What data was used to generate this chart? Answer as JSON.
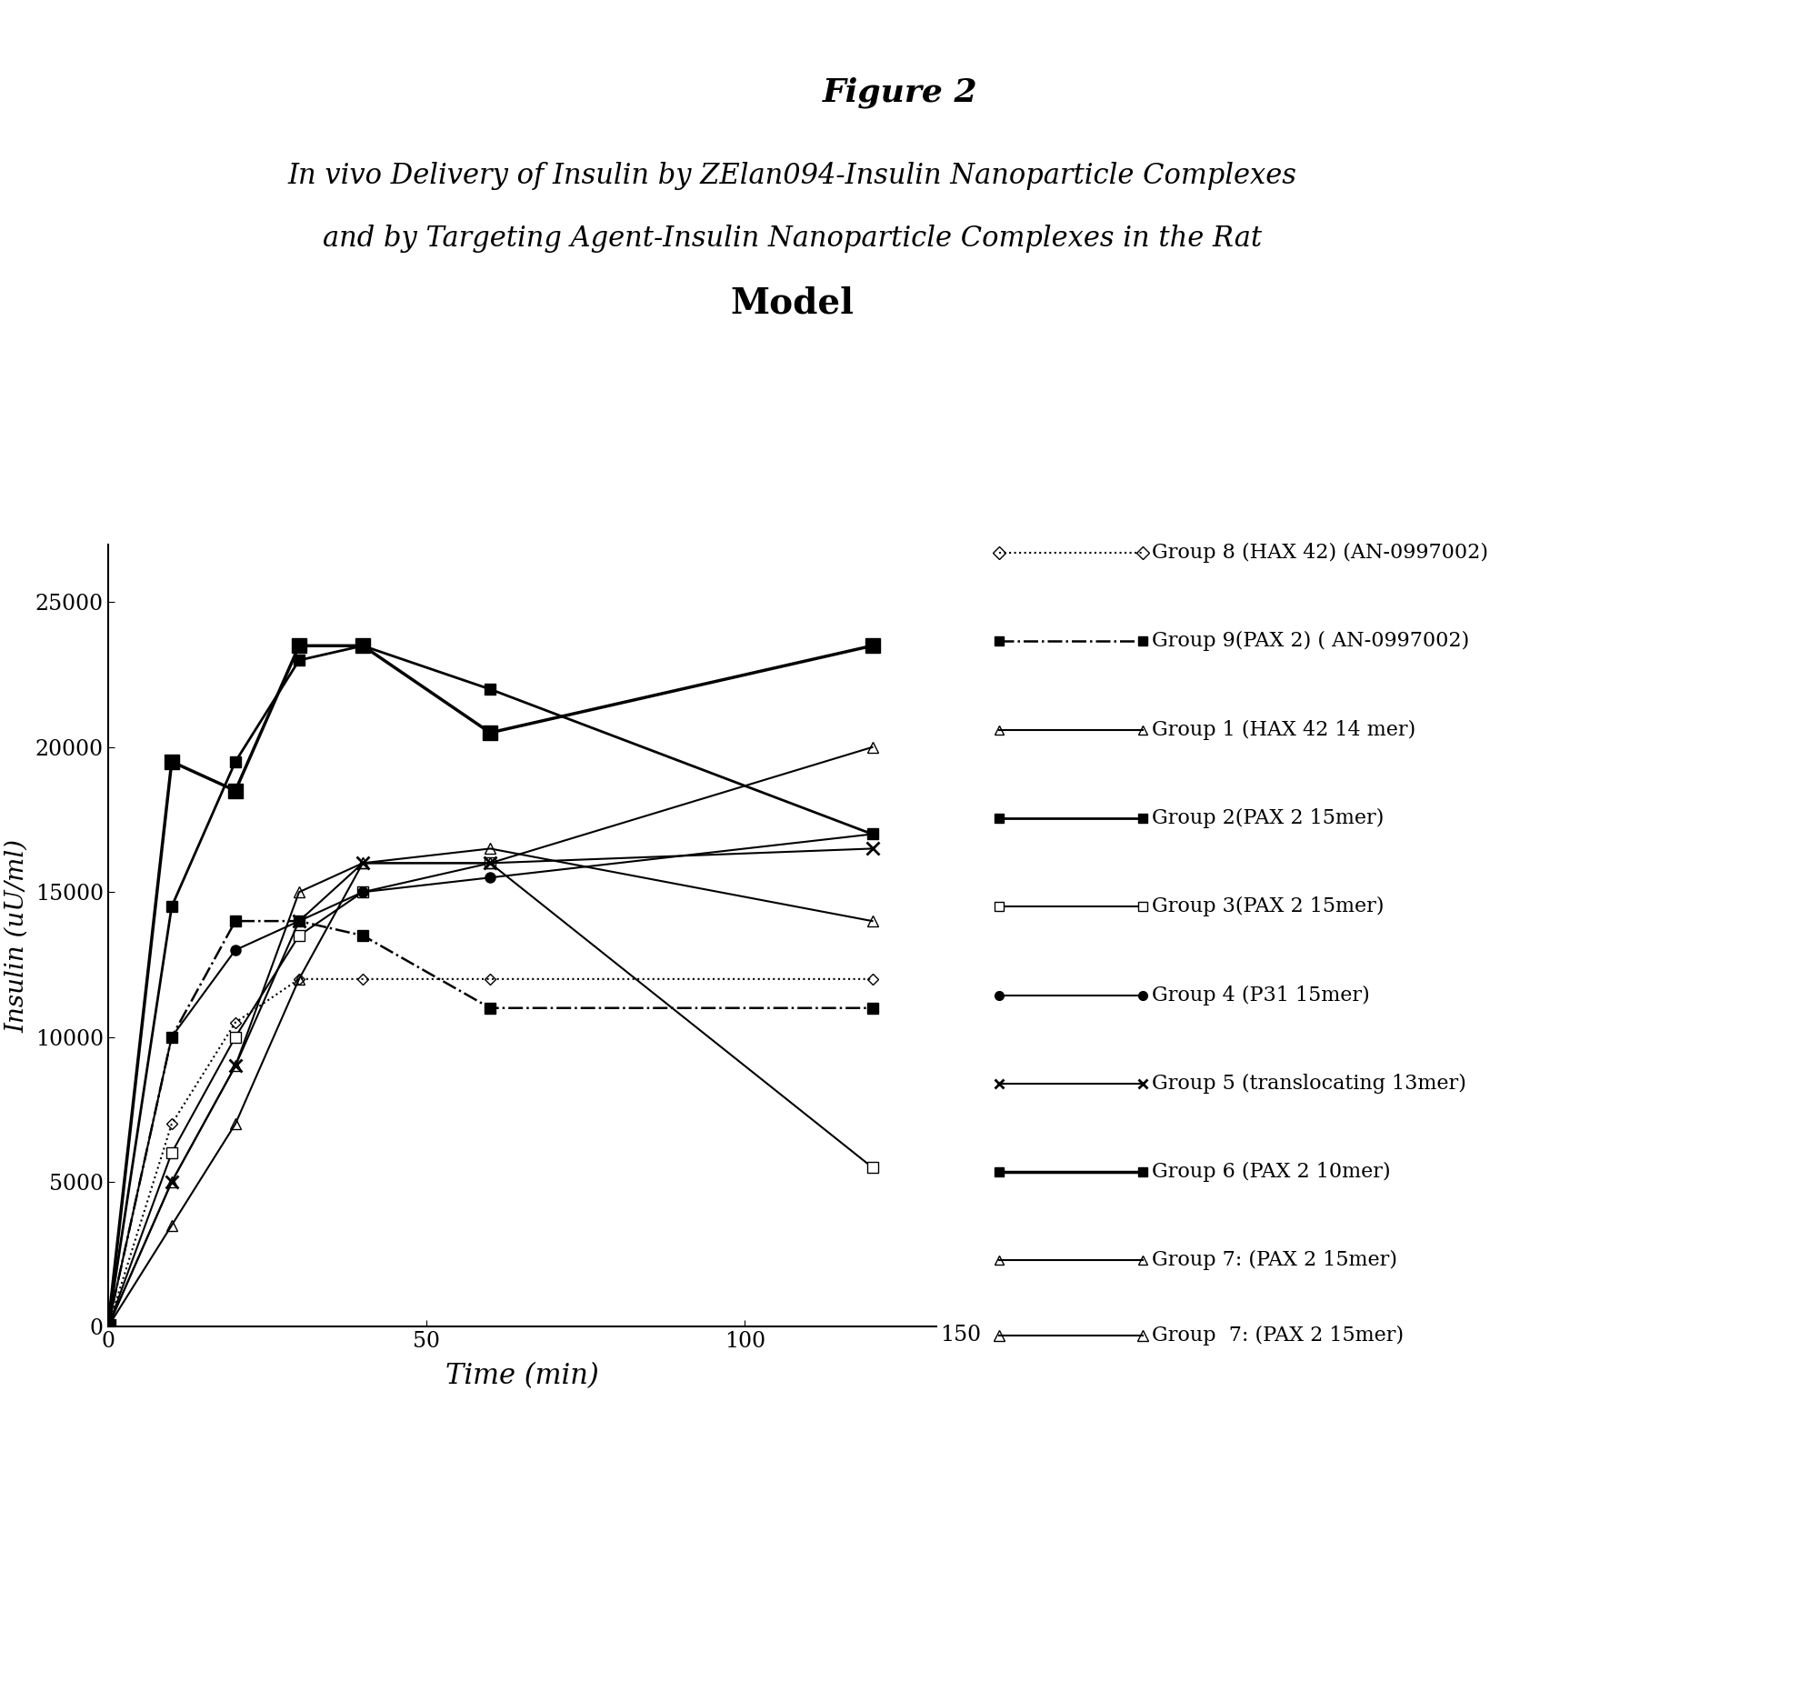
{
  "figure_title": "Figure 2",
  "subtitle_line1": "In vivo Delivery of Insulin by ZElan094-Insulin Nanoparticle Complexes",
  "subtitle_line2": "and by Targeting Agent-Insulin Nanoparticle Complexes in the Rat",
  "subtitle_line3": "Model",
  "xlabel": "Time (min)",
  "ylabel": "Insulin (uU/ml)",
  "xlim": [
    0,
    130
  ],
  "ylim": [
    0,
    27000
  ],
  "xticks": [
    0,
    50,
    100
  ],
  "yticks": [
    0,
    5000,
    10000,
    15000,
    20000,
    25000
  ],
  "background_color": "#ffffff",
  "series": [
    {
      "label": "Group 8 (HAX 42) (AN-0997002)",
      "x": [
        0,
        10,
        20,
        30,
        40,
        60,
        120
      ],
      "y": [
        0,
        7000,
        10500,
        12000,
        12000,
        12000,
        12000
      ],
      "linestyle": "dotted",
      "marker": "D",
      "marker_size": 6,
      "linewidth": 1.5,
      "mfc": "none"
    },
    {
      "label": "Group 9(PAX 2) ( AN-0997002)",
      "x": [
        0,
        10,
        20,
        30,
        40,
        60,
        120
      ],
      "y": [
        0,
        10000,
        14000,
        14000,
        13500,
        11000,
        11000
      ],
      "linestyle": "dashdot",
      "marker": "s",
      "marker_size": 9,
      "linewidth": 1.8,
      "mfc": "black"
    },
    {
      "label": "Group 1 (HAX 42 14 mer)",
      "x": [
        0,
        10,
        20,
        30,
        40,
        60,
        120
      ],
      "y": [
        0,
        5000,
        9000,
        15000,
        16000,
        16500,
        14000
      ],
      "linestyle": "solid",
      "marker": "^",
      "marker_size": 9,
      "linewidth": 1.5,
      "mfc": "none"
    },
    {
      "label": "Group 2(PAX 2 15mer)",
      "x": [
        0,
        10,
        20,
        30,
        40,
        60,
        120
      ],
      "y": [
        0,
        14500,
        19500,
        23000,
        23500,
        22000,
        17000
      ],
      "linestyle": "solid",
      "marker": "s",
      "marker_size": 9,
      "linewidth": 2.0,
      "mfc": "black"
    },
    {
      "label": "Group 3(PAX 2 15mer)",
      "x": [
        0,
        10,
        20,
        30,
        40,
        60,
        120
      ],
      "y": [
        0,
        6000,
        10000,
        13500,
        15000,
        16000,
        5500
      ],
      "linestyle": "solid",
      "marker": "s",
      "marker_size": 9,
      "linewidth": 1.5,
      "mfc": "white"
    },
    {
      "label": "Group 4 (P31 15mer)",
      "x": [
        0,
        10,
        20,
        30,
        40,
        60,
        120
      ],
      "y": [
        0,
        10000,
        13000,
        14000,
        15000,
        15500,
        17000
      ],
      "linestyle": "solid",
      "marker": "o",
      "marker_size": 8,
      "linewidth": 1.5,
      "mfc": "black"
    },
    {
      "label": "Group 5 (translocating 13mer)",
      "x": [
        0,
        10,
        20,
        30,
        40,
        60,
        120
      ],
      "y": [
        0,
        5000,
        9000,
        14000,
        16000,
        16000,
        16500
      ],
      "linestyle": "solid",
      "marker": "x",
      "marker_size": 10,
      "linewidth": 1.5,
      "mfc": "black"
    },
    {
      "label": "Group 6 (PAX 2 10mer)",
      "x": [
        0,
        10,
        20,
        30,
        40,
        60,
        120
      ],
      "y": [
        0,
        19500,
        18500,
        23500,
        23500,
        20500,
        23500
      ],
      "linestyle": "solid",
      "marker": "s",
      "marker_size": 11,
      "linewidth": 2.5,
      "mfc": "black"
    },
    {
      "label": "Group 7: (PAX 2 15mer)",
      "x": [
        0,
        10,
        20,
        30,
        40,
        60,
        120
      ],
      "y": [
        0,
        3500,
        7000,
        12000,
        16000,
        16000,
        20000
      ],
      "linestyle": "solid",
      "marker": "^",
      "marker_size": 9,
      "linewidth": 1.5,
      "mfc": "none"
    }
  ],
  "legend_entries": [
    {
      "label": "Group 8 (HAX 42) (AN-0997002)",
      "linestyle": "dotted",
      "marker": "D",
      "mfc": "none",
      "lw": 1.5
    },
    {
      "label": "Group 9(PAX 2) ( AN-0997002)",
      "linestyle": "dashdot",
      "marker": "s",
      "mfc": "black",
      "lw": 1.8
    },
    {
      "label": "Group 1 (HAX 42 14 mer)",
      "linestyle": "solid",
      "marker": "^",
      "mfc": "none",
      "lw": 1.5
    },
    {
      "label": "Group 2(PAX 2 15mer)",
      "linestyle": "solid",
      "marker": "s",
      "mfc": "black",
      "lw": 2.0
    },
    {
      "label": "Group 3(PAX 2 15mer)",
      "linestyle": "solid",
      "marker": "s",
      "mfc": "white",
      "lw": 1.5
    },
    {
      "label": "Group 4 (P31 15mer)",
      "linestyle": "solid",
      "marker": "o",
      "mfc": "black",
      "lw": 1.5
    },
    {
      "label": "Group 5 (translocating 13mer)",
      "linestyle": "solid",
      "marker": "x",
      "mfc": "black",
      "lw": 1.5
    },
    {
      "label": "Group 6 (PAX 2 10mer)",
      "linestyle": "solid",
      "marker": "s",
      "mfc": "black",
      "lw": 2.5
    },
    {
      "label": "Group 7: (PAX 2 15mer)",
      "linestyle": "solid",
      "marker": "^",
      "mfc": "none",
      "lw": 1.5
    }
  ]
}
